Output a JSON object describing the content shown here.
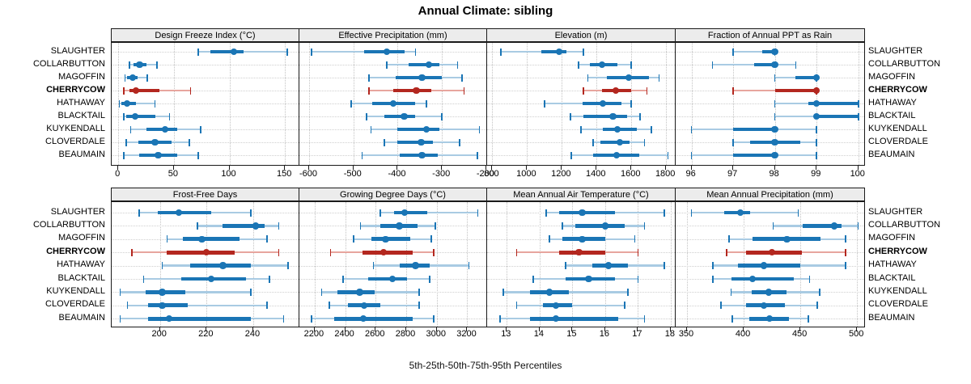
{
  "title": "Annual Climate: sibling",
  "caption": "5th-25th-50th-75th-95th Percentiles",
  "locations": [
    "SLAUGHTER",
    "COLLARBUTTON",
    "MAGOFFIN",
    "CHERRYCOW",
    "HATHAWAY",
    "BLACKTAIL",
    "KUYKENDALL",
    "CLOVERDALE",
    "BEAUMAIN"
  ],
  "highlighted_location": "CHERRYCOW",
  "colors": {
    "series_blue": "#1a75b5",
    "series_blue_light": "#a9cbe3",
    "highlight_red": "#b3271f",
    "highlight_red_light": "#e7a59e",
    "strip_bg": "#ececec",
    "panel_border": "#1a1a1a",
    "grid": "#c8c8c8"
  },
  "chart_data": {
    "type": "dotplot-percentiles",
    "percentile_levels": [
      5,
      25,
      50,
      75,
      95
    ],
    "layout": "2 rows x 4 cols",
    "grid": "dotted",
    "panels": [
      {
        "title": "Design Freeze Index (°C)",
        "row": 1,
        "col": 1,
        "xlim": [
          -6,
          163
        ],
        "ticks": [
          0,
          50,
          100,
          150
        ],
        "values": [
          [
            72,
            83,
            104,
            113,
            152
          ],
          [
            10,
            14,
            19,
            25,
            35
          ],
          [
            6,
            8,
            13,
            17,
            26
          ],
          [
            5,
            10,
            16,
            37,
            65
          ],
          [
            1,
            3,
            8,
            16,
            33
          ],
          [
            5,
            7,
            15,
            33,
            46
          ],
          [
            11,
            25,
            42,
            53,
            74
          ],
          [
            7,
            18,
            33,
            48,
            64
          ],
          [
            5,
            19,
            36,
            53,
            72
          ]
        ]
      },
      {
        "title": "Effective Precipitation (mm)",
        "row": 1,
        "col": 2,
        "xlim": [
          -622,
          -198
        ],
        "ticks": [
          -600,
          -500,
          -400,
          -300,
          -200
        ],
        "values": [
          [
            -595,
            -475,
            -425,
            -385,
            -360
          ],
          [
            -425,
            -375,
            -330,
            -305,
            -265
          ],
          [
            -465,
            -405,
            -345,
            -300,
            -255
          ],
          [
            -465,
            -410,
            -358,
            -325,
            -250
          ],
          [
            -505,
            -457,
            -410,
            -360,
            -335
          ],
          [
            -470,
            -430,
            -385,
            -360,
            -300
          ],
          [
            -460,
            -400,
            -335,
            -305,
            -215
          ],
          [
            -430,
            -400,
            -347,
            -320,
            -260
          ],
          [
            -480,
            -395,
            -345,
            -310,
            -220
          ]
        ]
      },
      {
        "title": "Elevation (m)",
        "row": 1,
        "col": 3,
        "xlim": [
          770,
          1855
        ],
        "ticks": [
          800,
          1000,
          1200,
          1400,
          1600,
          1800
        ],
        "values": [
          [
            850,
            1080,
            1185,
            1225,
            1325
          ],
          [
            1295,
            1360,
            1430,
            1520,
            1600
          ],
          [
            1350,
            1460,
            1585,
            1700,
            1760
          ],
          [
            1325,
            1430,
            1510,
            1600,
            1690
          ],
          [
            1100,
            1320,
            1435,
            1545,
            1600
          ],
          [
            1250,
            1325,
            1495,
            1575,
            1650
          ],
          [
            1310,
            1435,
            1520,
            1630,
            1715
          ],
          [
            1380,
            1420,
            1535,
            1590,
            1675
          ],
          [
            1255,
            1380,
            1515,
            1645,
            1810
          ]
        ]
      },
      {
        "title": "Fraction of Annual PPT as Rain",
        "row": 1,
        "col": 4,
        "xlim": [
          95.62,
          100.16
        ],
        "ticks": [
          96,
          97,
          98,
          99,
          100
        ],
        "values": [
          [
            97,
            97.7,
            98,
            98,
            98
          ],
          [
            96.5,
            97.5,
            98,
            98,
            98.5
          ],
          [
            98,
            98.5,
            99,
            99,
            99
          ],
          [
            97,
            98,
            99,
            99,
            99
          ],
          [
            98,
            98.8,
            99,
            100,
            100
          ],
          [
            98,
            99,
            99,
            100,
            100
          ],
          [
            96,
            97,
            98,
            98,
            99
          ],
          [
            97,
            97.4,
            98,
            98.6,
            99
          ],
          [
            96,
            97,
            98,
            98,
            99
          ]
        ]
      },
      {
        "title": "Frost-Free Days",
        "row": 2,
        "col": 1,
        "xlim": [
          179.3,
          259.8
        ],
        "ticks": [
          200,
          220,
          240
        ],
        "values": [
          [
            191,
            199,
            208,
            222,
            239
          ],
          [
            216,
            227,
            241,
            245,
            251
          ],
          [
            203,
            210,
            218,
            234,
            246
          ],
          [
            188,
            203,
            220,
            232,
            251
          ],
          [
            201,
            213,
            227,
            239,
            255
          ],
          [
            193,
            209,
            222,
            237,
            247
          ],
          [
            183,
            194,
            201,
            211,
            239
          ],
          [
            186,
            195,
            201,
            212,
            246
          ],
          [
            183,
            195,
            204,
            239,
            253
          ]
        ]
      },
      {
        "title": "Growing Degree Days (°C)",
        "row": 2,
        "col": 2,
        "xlim": [
          2100,
          3330
        ],
        "ticks": [
          2200,
          2400,
          2600,
          2800,
          3000,
          3200
        ],
        "values": [
          [
            2630,
            2720,
            2790,
            2940,
            3270
          ],
          [
            2500,
            2630,
            2755,
            2875,
            2990
          ],
          [
            2455,
            2570,
            2665,
            2825,
            2965
          ],
          [
            2305,
            2515,
            2650,
            2840,
            2980
          ],
          [
            2585,
            2755,
            2860,
            2955,
            3210
          ],
          [
            2385,
            2550,
            2710,
            2805,
            2955
          ],
          [
            2245,
            2350,
            2495,
            2595,
            2885
          ],
          [
            2295,
            2420,
            2525,
            2630,
            2885
          ],
          [
            2180,
            2330,
            2520,
            2840,
            2980
          ]
        ]
      },
      {
        "title": "Mean Annual Air Temperature (°C)",
        "row": 2,
        "col": 3,
        "xlim": [
          12.4,
          18.15
        ],
        "ticks": [
          13,
          14,
          15,
          16,
          17,
          18
        ],
        "values": [
          [
            14.2,
            14.6,
            15.3,
            16.3,
            17.8
          ],
          [
            14.7,
            15.1,
            16.0,
            16.6,
            17.2
          ],
          [
            14.3,
            14.7,
            15.3,
            16.0,
            16.9
          ],
          [
            13.3,
            14.6,
            15.2,
            16.0,
            17.0
          ],
          [
            14.8,
            15.6,
            16.1,
            16.7,
            17.8
          ],
          [
            13.8,
            14.8,
            15.5,
            16.3,
            17.0
          ],
          [
            12.9,
            13.7,
            14.3,
            14.9,
            16.7
          ],
          [
            13.3,
            14.1,
            14.5,
            15.0,
            16.6
          ],
          [
            12.8,
            13.7,
            14.5,
            16.4,
            17.2
          ]
        ]
      },
      {
        "title": "Mean Annual Precipitation (mm)",
        "row": 2,
        "col": 4,
        "xlim": [
          340,
          507
        ],
        "ticks": [
          350,
          400,
          450,
          500
        ],
        "values": [
          [
            354,
            383,
            397,
            406,
            448
          ],
          [
            426,
            452,
            480,
            486,
            501
          ],
          [
            387,
            408,
            438,
            468,
            490
          ],
          [
            385,
            402,
            425,
            451,
            490
          ],
          [
            373,
            395,
            418,
            450,
            490
          ],
          [
            373,
            389,
            408,
            444,
            458
          ],
          [
            389,
            407,
            422,
            438,
            467
          ],
          [
            380,
            402,
            418,
            436,
            465
          ],
          [
            390,
            405,
            423,
            440,
            457
          ]
        ]
      }
    ]
  }
}
